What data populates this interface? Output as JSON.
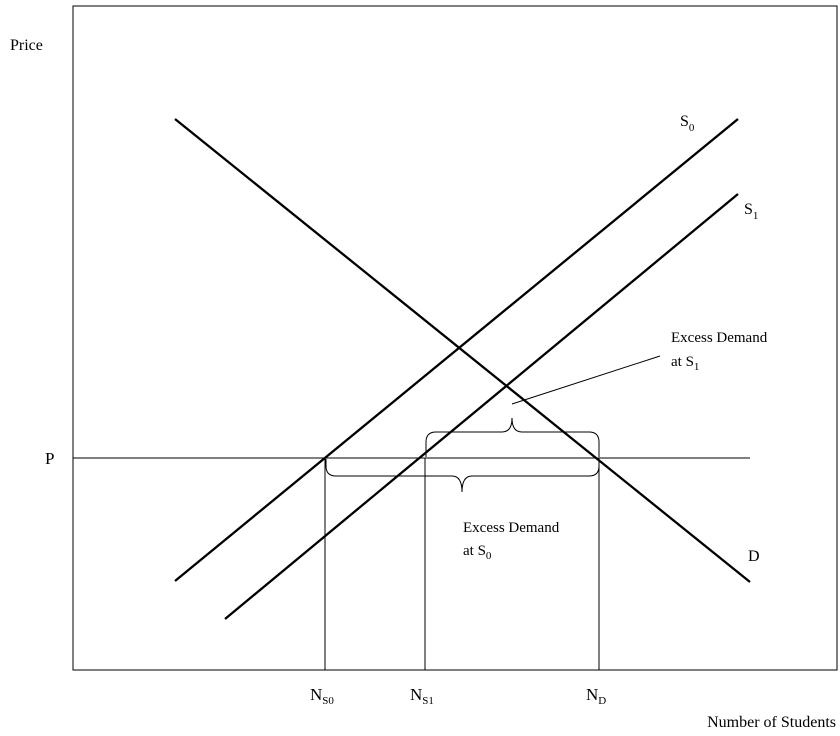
{
  "diagram": {
    "y_axis_label": "Price",
    "x_axis_label": "Number of Students",
    "price_level_label": "P",
    "curves": {
      "s0": {
        "main": "S",
        "sub": "0"
      },
      "s1": {
        "main": "S",
        "sub": "1"
      },
      "d": {
        "main": "D"
      }
    },
    "quantity_ticks": {
      "ns0": {
        "main": "N",
        "sub": "S0"
      },
      "ns1": {
        "main": "N",
        "sub": "S1"
      },
      "nd": {
        "main": "N",
        "sub": "D"
      }
    },
    "annotations": {
      "excess_s1": {
        "line1": "Excess Demand",
        "line2_main": "at S",
        "line2_sub": "1"
      },
      "excess_s0": {
        "line1": "Excess Demand",
        "line2_main": "at S",
        "line2_sub": "0"
      }
    },
    "colors": {
      "ink": "#000000",
      "background": "#ffffff"
    }
  }
}
